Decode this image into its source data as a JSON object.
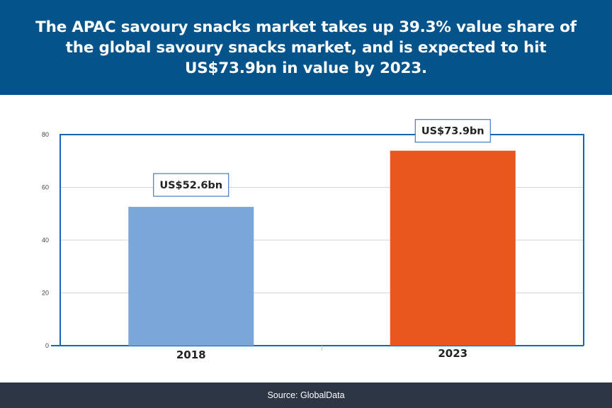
{
  "header": {
    "title": "The APAC savoury snacks market takes up 39.3% value share of the global savoury snacks market, and is expected to hit US$73.9bn in value by 2023."
  },
  "footer": {
    "source": "Source: GlobalData"
  },
  "colors": {
    "header_bg": "#04548b",
    "footer_bg": "#2c3644",
    "plot_border": "#1a63b5",
    "bar_2018": "#7ba6da",
    "bar_2023": "#e9571e"
  },
  "chart_data": {
    "type": "bar",
    "categories": [
      "2018",
      "2023"
    ],
    "values": [
      52.6,
      73.9
    ],
    "data_labels": [
      "US$52.6bn",
      "US$73.9bn"
    ],
    "bar_colors": [
      "#7ba6da",
      "#e9571e"
    ],
    "title": "",
    "xlabel": "",
    "ylabel": "",
    "ylim": [
      0,
      80
    ],
    "yticks": [
      "0",
      "20",
      "40",
      "60",
      "80"
    ],
    "grid": true,
    "legend": "none"
  }
}
